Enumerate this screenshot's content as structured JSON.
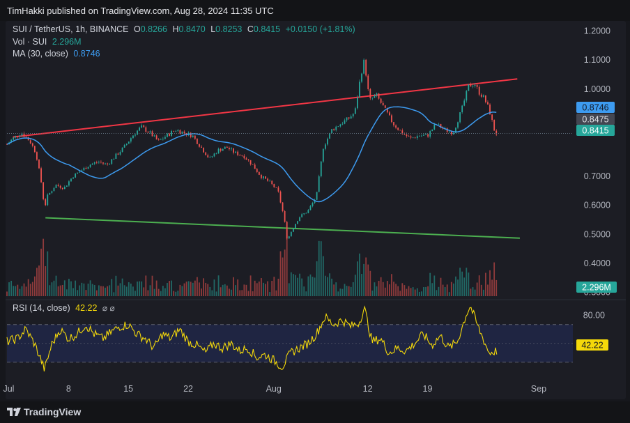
{
  "publisher": "TimHakki published on TradingView.com, Aug 28, 2024 11:35 UTC",
  "brand": "TradingView",
  "legend": {
    "symbol": "SUI / TetherUS, 1h, BINANCE",
    "o_label": "O",
    "o": "0.8266",
    "h_label": "H",
    "h": "0.8470",
    "l_label": "L",
    "l": "0.8253",
    "c_label": "C",
    "c": "0.8415",
    "change": "+0.0150 (+1.81%)",
    "vol_label": "Vol · SUI",
    "vol": "2.296M",
    "ma_label": "MA (30, close)",
    "ma": "0.8746",
    "rsi_label": "RSI (14, close)",
    "rsi": "42.22",
    "rsi_icons": "⌀ ⌀"
  },
  "colors": {
    "up": "#26a69a",
    "down": "#ef5350",
    "ma": "#3d9bf0",
    "rsi": "#f5d90a",
    "resistance": "#f23645",
    "support": "#4caf50",
    "bg": "#1c1d24"
  },
  "chart_data": [
    {
      "type": "line",
      "name": "price",
      "title": "SUI / TetherUS, 1h, BINANCE",
      "y_ticks": [
        "1.2000",
        "1.1000",
        "1.0000",
        "0.7000",
        "0.6000",
        "0.5000",
        "0.4000",
        "0.3000"
      ],
      "y_tick_values": [
        1.2,
        1.1,
        1.0,
        0.7,
        0.6,
        0.5,
        0.4,
        0.3
      ],
      "ylim": [
        0.28,
        1.23
      ],
      "x_ticks": [
        "Jul",
        "8",
        "15",
        "22",
        "Aug",
        "12",
        "19",
        "Sep"
      ],
      "x_tick_days": [
        1,
        8,
        15,
        22,
        32,
        43,
        50,
        63
      ],
      "xlim_days": [
        0.8,
        67
      ],
      "price_path": [
        [
          0.8,
          0.81
        ],
        [
          1.5,
          0.83
        ],
        [
          2.5,
          0.85
        ],
        [
          3.5,
          0.82
        ],
        [
          4.2,
          0.78
        ],
        [
          4.8,
          0.68
        ],
        [
          5.2,
          0.59
        ],
        [
          5.5,
          0.63
        ],
        [
          6.5,
          0.67
        ],
        [
          7.5,
          0.66
        ],
        [
          8.5,
          0.7
        ],
        [
          9.5,
          0.72
        ],
        [
          10.5,
          0.74
        ],
        [
          11.5,
          0.75
        ],
        [
          12.5,
          0.74
        ],
        [
          13.5,
          0.77
        ],
        [
          14.5,
          0.8
        ],
        [
          15.5,
          0.84
        ],
        [
          16.5,
          0.87
        ],
        [
          17.5,
          0.85
        ],
        [
          18.5,
          0.82
        ],
        [
          19.5,
          0.84
        ],
        [
          20.5,
          0.86
        ],
        [
          21.5,
          0.85
        ],
        [
          22.5,
          0.84
        ],
        [
          23.5,
          0.8
        ],
        [
          24.5,
          0.76
        ],
        [
          25.5,
          0.79
        ],
        [
          26.5,
          0.8
        ],
        [
          27.5,
          0.78
        ],
        [
          28.5,
          0.77
        ],
        [
          29.5,
          0.74
        ],
        [
          30.5,
          0.7
        ],
        [
          31.5,
          0.68
        ],
        [
          32.5,
          0.65
        ],
        [
          33.2,
          0.56
        ],
        [
          33.6,
          0.48
        ],
        [
          34.2,
          0.52
        ],
        [
          35.0,
          0.56
        ],
        [
          36.0,
          0.58
        ],
        [
          37.0,
          0.63
        ],
        [
          37.8,
          0.8
        ],
        [
          38.8,
          0.86
        ],
        [
          39.8,
          0.88
        ],
        [
          40.8,
          0.9
        ],
        [
          41.5,
          0.92
        ],
        [
          42.2,
          1.05
        ],
        [
          42.6,
          1.1
        ],
        [
          43.2,
          0.96
        ],
        [
          44.0,
          0.98
        ],
        [
          45.0,
          0.93
        ],
        [
          46.0,
          0.88
        ],
        [
          47.0,
          0.85
        ],
        [
          48.0,
          0.83
        ],
        [
          49.0,
          0.84
        ],
        [
          50.0,
          0.84
        ],
        [
          51.0,
          0.88
        ],
        [
          52.0,
          0.86
        ],
        [
          53.0,
          0.85
        ],
        [
          54.0,
          0.93
        ],
        [
          54.8,
          1.01
        ],
        [
          55.5,
          1.02
        ],
        [
          56.0,
          0.99
        ],
        [
          56.6,
          0.97
        ],
        [
          57.2,
          0.93
        ],
        [
          57.8,
          0.86
        ],
        [
          58.2,
          0.84
        ]
      ],
      "ma_value": 0.8746,
      "last_price": 0.8415,
      "ref_price": 0.8475,
      "price_labels": [
        "0.8746",
        "0.8475",
        "0.8415"
      ],
      "volume_label": "2.296M",
      "trendlines": [
        {
          "name": "resistance",
          "from": [
            1.5,
            0.835
          ],
          "to": [
            60.5,
            1.035
          ]
        },
        {
          "name": "support",
          "from": [
            5.3,
            0.557
          ],
          "to": [
            60.8,
            0.487
          ]
        }
      ]
    },
    {
      "type": "line",
      "name": "RSI (14, close)",
      "y_ticks": [
        "80.00"
      ],
      "bands": [
        70,
        50,
        30
      ],
      "ylim": [
        15,
        95
      ],
      "last": 42.22,
      "rsi_path": [
        [
          0.8,
          52
        ],
        [
          2,
          55
        ],
        [
          3,
          65
        ],
        [
          4,
          50
        ],
        [
          4.8,
          32
        ],
        [
          5.2,
          22
        ],
        [
          6,
          48
        ],
        [
          7,
          65
        ],
        [
          8,
          55
        ],
        [
          9,
          60
        ],
        [
          10,
          70
        ],
        [
          11,
          60
        ],
        [
          12,
          55
        ],
        [
          13,
          62
        ],
        [
          14,
          68
        ],
        [
          15,
          70
        ],
        [
          16,
          60
        ],
        [
          17,
          55
        ],
        [
          18,
          45
        ],
        [
          19,
          60
        ],
        [
          20,
          55
        ],
        [
          21,
          65
        ],
        [
          22,
          52
        ],
        [
          23,
          48
        ],
        [
          24,
          40
        ],
        [
          25,
          50
        ],
        [
          26,
          45
        ],
        [
          27,
          50
        ],
        [
          28,
          42
        ],
        [
          29,
          45
        ],
        [
          30,
          35
        ],
        [
          31,
          38
        ],
        [
          32,
          32
        ],
        [
          33,
          25
        ],
        [
          34,
          40
        ],
        [
          35,
          45
        ],
        [
          36,
          50
        ],
        [
          37,
          60
        ],
        [
          38,
          78
        ],
        [
          39,
          70
        ],
        [
          40,
          75
        ],
        [
          41,
          68
        ],
        [
          42,
          72
        ],
        [
          42.6,
          88
        ],
        [
          43.5,
          52
        ],
        [
          44.5,
          55
        ],
        [
          45.5,
          40
        ],
        [
          46.5,
          45
        ],
        [
          47.5,
          42
        ],
        [
          48.5,
          50
        ],
        [
          49.5,
          60
        ],
        [
          50.5,
          48
        ],
        [
          51.5,
          58
        ],
        [
          52.5,
          45
        ],
        [
          53.5,
          52
        ],
        [
          54.5,
          80
        ],
        [
          55.0,
          90
        ],
        [
          55.8,
          70
        ],
        [
          56.5,
          55
        ],
        [
          57.2,
          40
        ],
        [
          58.2,
          42.22
        ]
      ]
    }
  ]
}
